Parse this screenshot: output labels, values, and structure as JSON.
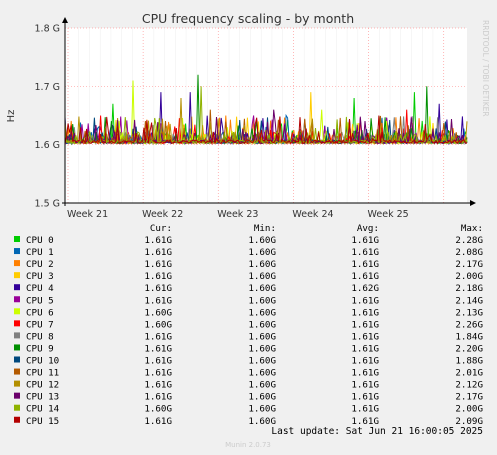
{
  "chart_data": {
    "type": "line",
    "title": "CPU frequency scaling - by month",
    "ylabel": "Hz",
    "side_label": "RRDTOOL / TOBI OETIKER",
    "ylim": [
      1.5,
      1.8
    ],
    "yticks": [
      {
        "value": 1.8,
        "label": "1.8 G"
      },
      {
        "value": 1.7,
        "label": "1.7 G"
      },
      {
        "value": 1.6,
        "label": "1.6 G"
      },
      {
        "value": 1.5,
        "label": "1.5 G"
      }
    ],
    "xticks": [
      "Week 21",
      "Week 22",
      "Week 23",
      "Week 24",
      "Week 25"
    ],
    "baseline": 1.605,
    "column_headers": [
      "Cur:",
      "Min:",
      "Avg:",
      "Max:"
    ],
    "series": [
      {
        "name": "CPU 0",
        "color": "#00cc00",
        "cur": "1.61G",
        "min": "1.60G",
        "avg": "1.61G",
        "max": "2.28G"
      },
      {
        "name": "CPU 1",
        "color": "#0066b3",
        "cur": "1.61G",
        "min": "1.60G",
        "avg": "1.61G",
        "max": "2.08G"
      },
      {
        "name": "CPU 2",
        "color": "#ff8000",
        "cur": "1.61G",
        "min": "1.60G",
        "avg": "1.61G",
        "max": "2.17G"
      },
      {
        "name": "CPU 3",
        "color": "#ffcc00",
        "cur": "1.61G",
        "min": "1.60G",
        "avg": "1.61G",
        "max": "2.00G"
      },
      {
        "name": "CPU 4",
        "color": "#330099",
        "cur": "1.61G",
        "min": "1.60G",
        "avg": "1.62G",
        "max": "2.18G"
      },
      {
        "name": "CPU 5",
        "color": "#990099",
        "cur": "1.61G",
        "min": "1.60G",
        "avg": "1.61G",
        "max": "2.14G"
      },
      {
        "name": "CPU 6",
        "color": "#ccff00",
        "cur": "1.60G",
        "min": "1.60G",
        "avg": "1.61G",
        "max": "2.13G"
      },
      {
        "name": "CPU 7",
        "color": "#ff0000",
        "cur": "1.60G",
        "min": "1.60G",
        "avg": "1.61G",
        "max": "2.26G"
      },
      {
        "name": "CPU 8",
        "color": "#808080",
        "cur": "1.61G",
        "min": "1.60G",
        "avg": "1.61G",
        "max": "1.84G"
      },
      {
        "name": "CPU 9",
        "color": "#008f00",
        "cur": "1.61G",
        "min": "1.60G",
        "avg": "1.61G",
        "max": "2.20G"
      },
      {
        "name": "CPU 10",
        "color": "#00487d",
        "cur": "1.61G",
        "min": "1.60G",
        "avg": "1.61G",
        "max": "1.88G"
      },
      {
        "name": "CPU 11",
        "color": "#b35a00",
        "cur": "1.61G",
        "min": "1.60G",
        "avg": "1.61G",
        "max": "2.01G"
      },
      {
        "name": "CPU 12",
        "color": "#b38f00",
        "cur": "1.61G",
        "min": "1.60G",
        "avg": "1.61G",
        "max": "2.12G"
      },
      {
        "name": "CPU 13",
        "color": "#6b006b",
        "cur": "1.61G",
        "min": "1.60G",
        "avg": "1.61G",
        "max": "2.17G"
      },
      {
        "name": "CPU 14",
        "color": "#8fb300",
        "cur": "1.60G",
        "min": "1.60G",
        "avg": "1.61G",
        "max": "2.00G"
      },
      {
        "name": "CPU 15",
        "color": "#b30000",
        "cur": "1.61G",
        "min": "1.60G",
        "avg": "1.61G",
        "max": "2.09G"
      }
    ],
    "spikes": [
      {
        "series": "CPU 0",
        "x": 0.12,
        "y": 1.67
      },
      {
        "series": "CPU 0",
        "x": 0.72,
        "y": 1.68
      },
      {
        "series": "CPU 0",
        "x": 0.87,
        "y": 1.69
      },
      {
        "series": "CPU 1",
        "x": 0.55,
        "y": 1.65
      },
      {
        "series": "CPU 2",
        "x": 0.4,
        "y": 1.65
      },
      {
        "series": "CPU 3",
        "x": 0.61,
        "y": 1.69
      },
      {
        "series": "CPU 4",
        "x": 0.24,
        "y": 1.69
      },
      {
        "series": "CPU 4",
        "x": 0.31,
        "y": 1.69
      },
      {
        "series": "CPU 4",
        "x": 0.93,
        "y": 1.67
      },
      {
        "series": "CPU 5",
        "x": 0.47,
        "y": 1.65
      },
      {
        "series": "CPU 6",
        "x": 0.17,
        "y": 1.71
      },
      {
        "series": "CPU 6",
        "x": 0.64,
        "y": 1.66
      },
      {
        "series": "CPU 7",
        "x": 0.09,
        "y": 1.65
      },
      {
        "series": "CPU 7",
        "x": 0.85,
        "y": 1.66
      },
      {
        "series": "CPU 9",
        "x": 0.33,
        "y": 1.72
      },
      {
        "series": "CPU 9",
        "x": 0.9,
        "y": 1.7
      },
      {
        "series": "CPU 11",
        "x": 0.36,
        "y": 1.66
      },
      {
        "series": "CPU 12",
        "x": 0.29,
        "y": 1.68
      },
      {
        "series": "CPU 13",
        "x": 0.52,
        "y": 1.66
      },
      {
        "series": "CPU 14",
        "x": 0.34,
        "y": 1.7
      },
      {
        "series": "CPU 15",
        "x": 0.78,
        "y": 1.65
      }
    ]
  },
  "footer": {
    "last_update": "Last update: Sat Jun 21 16:00:05 2025",
    "munin": "Munin 2.0.73"
  }
}
